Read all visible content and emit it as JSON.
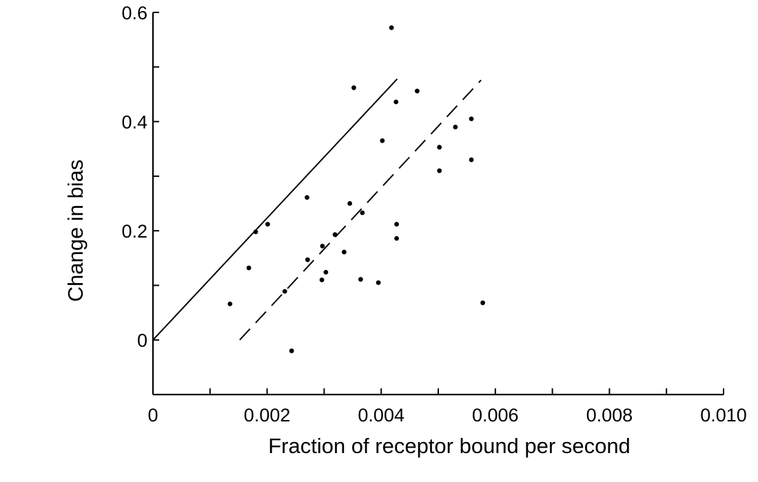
{
  "chart_data": {
    "type": "scatter",
    "title": "",
    "xlabel": "Fraction of receptor bound per second",
    "ylabel": "Change in bias",
    "xlim": [
      0,
      0.01
    ],
    "ylim": [
      -0.1,
      0.6
    ],
    "x_ticks": [
      0,
      0.001,
      0.002,
      0.003,
      0.004,
      0.005,
      0.006,
      0.007,
      0.008,
      0.009,
      0.01
    ],
    "x_tick_labels": [
      {
        "value": 0,
        "label": "0"
      },
      {
        "value": 0.002,
        "label": "0.002"
      },
      {
        "value": 0.004,
        "label": "0.004"
      },
      {
        "value": 0.006,
        "label": "0.006"
      },
      {
        "value": 0.008,
        "label": "0.008"
      },
      {
        "value": 0.01,
        "label": "0.010"
      }
    ],
    "y_ticks": [
      -0.1,
      0,
      0.1,
      0.2,
      0.3,
      0.4,
      0.5,
      0.6
    ],
    "y_tick_labels": [
      {
        "value": 0,
        "label": "0"
      },
      {
        "value": 0.2,
        "label": "0.2"
      },
      {
        "value": 0.4,
        "label": "0.4"
      },
      {
        "value": 0.6,
        "label": "0.6"
      }
    ],
    "grid": false,
    "points": [
      {
        "x": 0.00135,
        "y": 0.066
      },
      {
        "x": 0.00168,
        "y": 0.132
      },
      {
        "x": 0.0018,
        "y": 0.198
      },
      {
        "x": 0.00201,
        "y": 0.212
      },
      {
        "x": 0.00231,
        "y": 0.089
      },
      {
        "x": 0.00243,
        "y": -0.02
      },
      {
        "x": 0.0027,
        "y": 0.261
      },
      {
        "x": 0.00271,
        "y": 0.147
      },
      {
        "x": 0.00296,
        "y": 0.11
      },
      {
        "x": 0.00297,
        "y": 0.172
      },
      {
        "x": 0.00303,
        "y": 0.124
      },
      {
        "x": 0.00319,
        "y": 0.193
      },
      {
        "x": 0.00335,
        "y": 0.161
      },
      {
        "x": 0.00345,
        "y": 0.25
      },
      {
        "x": 0.00352,
        "y": 0.462
      },
      {
        "x": 0.00364,
        "y": 0.111
      },
      {
        "x": 0.00367,
        "y": 0.233
      },
      {
        "x": 0.00395,
        "y": 0.105
      },
      {
        "x": 0.00402,
        "y": 0.365
      },
      {
        "x": 0.00418,
        "y": 0.572
      },
      {
        "x": 0.00426,
        "y": 0.436
      },
      {
        "x": 0.00427,
        "y": 0.212
      },
      {
        "x": 0.00427,
        "y": 0.186
      },
      {
        "x": 0.00463,
        "y": 0.456
      },
      {
        "x": 0.00502,
        "y": 0.353
      },
      {
        "x": 0.00502,
        "y": 0.31
      },
      {
        "x": 0.0053,
        "y": 0.39
      },
      {
        "x": 0.00558,
        "y": 0.405
      },
      {
        "x": 0.00558,
        "y": 0.33
      },
      {
        "x": 0.00578,
        "y": 0.068
      }
    ],
    "lines": [
      {
        "style": "solid",
        "from": {
          "x": 0.0,
          "y": 0.0
        },
        "to": {
          "x": 0.00428,
          "y": 0.478
        }
      },
      {
        "style": "dashed",
        "from": {
          "x": 0.00152,
          "y": 0.0
        },
        "to": {
          "x": 0.00575,
          "y": 0.476
        }
      }
    ]
  }
}
